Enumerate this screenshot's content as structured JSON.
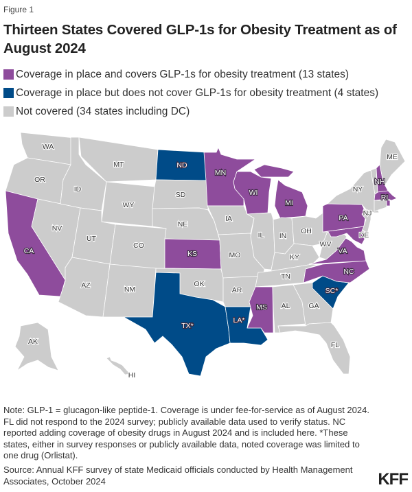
{
  "figure_label": "Figure 1",
  "title": "Thirteen States Covered GLP-1s for Obesity Treatment as of August 2024",
  "legend": [
    {
      "key": "covers",
      "label": "Coverage in place and covers GLP-1s for obesity treatment (13 states)",
      "color": "#8e4c9c"
    },
    {
      "key": "no_glp1",
      "label": "Coverage in place but does not cover GLP-1s for obesity treatment (4 states)",
      "color": "#004b88"
    },
    {
      "key": "not_covered",
      "label": "Not covered (34 states including DC)",
      "color": "#cccccc"
    }
  ],
  "states": {
    "WA": {
      "label": "WA",
      "status": "not_covered"
    },
    "OR": {
      "label": "OR",
      "status": "not_covered"
    },
    "CA": {
      "label": "CA",
      "status": "covers"
    },
    "NV": {
      "label": "NV",
      "status": "not_covered"
    },
    "ID": {
      "label": "ID",
      "status": "not_covered"
    },
    "MT": {
      "label": "MT",
      "status": "not_covered"
    },
    "WY": {
      "label": "WY",
      "status": "not_covered"
    },
    "UT": {
      "label": "UT",
      "status": "not_covered"
    },
    "CO": {
      "label": "CO",
      "status": "not_covered"
    },
    "AZ": {
      "label": "AZ",
      "status": "not_covered"
    },
    "NM": {
      "label": "NM",
      "status": "not_covered"
    },
    "ND": {
      "label": "ND",
      "status": "no_glp1"
    },
    "SD": {
      "label": "SD",
      "status": "not_covered"
    },
    "NE": {
      "label": "NE",
      "status": "not_covered"
    },
    "KS": {
      "label": "KS",
      "status": "covers"
    },
    "OK": {
      "label": "OK",
      "status": "not_covered"
    },
    "TX": {
      "label": "TX*",
      "status": "no_glp1"
    },
    "MN": {
      "label": "MN",
      "status": "covers"
    },
    "IA": {
      "label": "IA",
      "status": "not_covered"
    },
    "MO": {
      "label": "MO",
      "status": "not_covered"
    },
    "AR": {
      "label": "AR",
      "status": "not_covered"
    },
    "LA": {
      "label": "LA*",
      "status": "no_glp1"
    },
    "WI": {
      "label": "WI",
      "status": "covers"
    },
    "IL": {
      "label": "IL",
      "status": "not_covered"
    },
    "MI": {
      "label": "MI",
      "status": "covers"
    },
    "IN": {
      "label": "IN",
      "status": "not_covered"
    },
    "OH": {
      "label": "OH",
      "status": "not_covered"
    },
    "KY": {
      "label": "KY",
      "status": "not_covered"
    },
    "TN": {
      "label": "TN",
      "status": "not_covered"
    },
    "MS": {
      "label": "MS",
      "status": "covers"
    },
    "AL": {
      "label": "AL",
      "status": "not_covered"
    },
    "GA": {
      "label": "GA",
      "status": "not_covered"
    },
    "FL": {
      "label": "FL",
      "status": "not_covered"
    },
    "SC": {
      "label": "SC*",
      "status": "no_glp1"
    },
    "NC": {
      "label": "NC",
      "status": "covers"
    },
    "VA": {
      "label": "VA",
      "status": "covers"
    },
    "WV": {
      "label": "WV",
      "status": "not_covered"
    },
    "MD": {
      "label": "",
      "status": "covers"
    },
    "DE": {
      "label": "DE",
      "status": "not_covered"
    },
    "PA": {
      "label": "PA",
      "status": "covers"
    },
    "NJ": {
      "label": "NJ",
      "status": "not_covered"
    },
    "NY": {
      "label": "NY",
      "status": "not_covered"
    },
    "CT": {
      "label": "",
      "status": "not_covered"
    },
    "RI": {
      "label": "RI",
      "status": "covers"
    },
    "MA": {
      "label": "",
      "status": "covers"
    },
    "VT": {
      "label": "",
      "status": "not_covered"
    },
    "NH": {
      "label": "NH",
      "status": "covers"
    },
    "ME": {
      "label": "ME",
      "status": "not_covered"
    },
    "AK": {
      "label": "AK",
      "status": "not_covered"
    },
    "HI": {
      "label": "HI",
      "status": "not_covered"
    }
  },
  "note": "Note: GLP-1 = glucagon-like peptide-1. Coverage is under fee-for-service as of August 2024. FL did not respond to the 2024 survey; publicly available data used to verify status. NC reported adding coverage of obesity drugs in August 2024 and is included here. *These states, either in survey responses or publicly available data, noted coverage was limited to one drug (Orlistat).",
  "source": "Source: Annual KFF survey of state Medicaid officials conducted by Health Management Associates, October 2024",
  "logo": "KFF"
}
